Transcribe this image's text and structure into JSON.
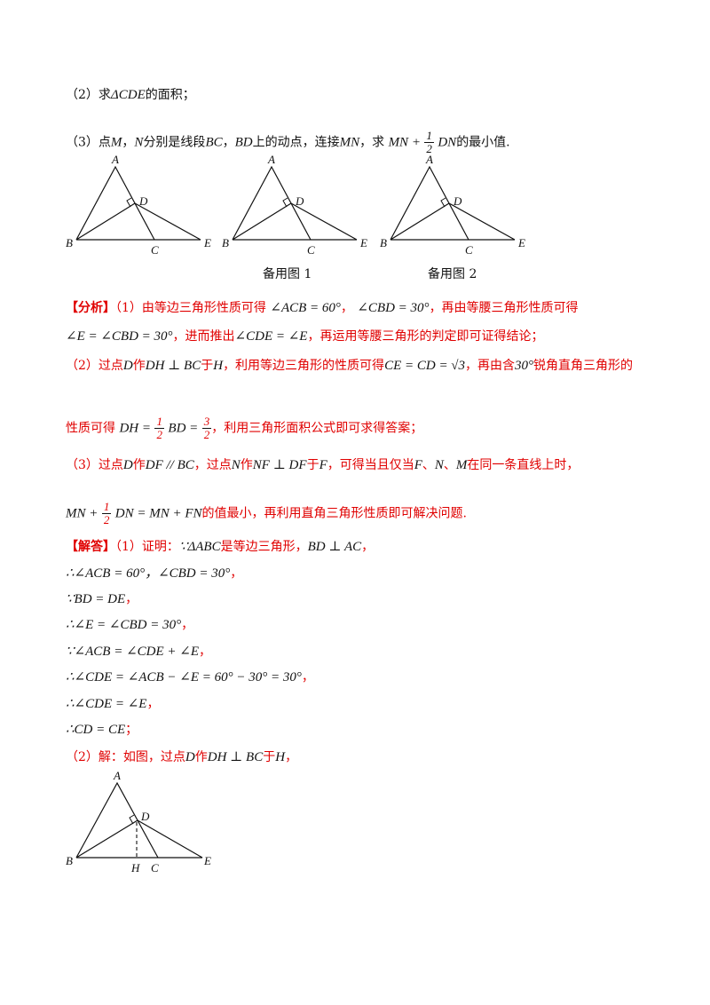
{
  "q2": {
    "label": "（2）求",
    "math": "ΔCDE",
    "tail": "的面积；"
  },
  "q3": {
    "label": "（3）点",
    "m": "M",
    "sep1": "，",
    "n": "N",
    "text1": "分别是线段",
    "bc": "BC",
    "sep2": "，",
    "bd": "BD",
    "text2": "上的动点，连接",
    "mn": "MN",
    "text3": "，求",
    "expr_pre": "MN +",
    "frac_num": "1",
    "frac_den": "2",
    "expr_post": "DN",
    "text4": "的最小值."
  },
  "figures": {
    "labels": {
      "A": "A",
      "B": "B",
      "C": "C",
      "D": "D",
      "E": "E",
      "H": "H"
    },
    "caption1": "备用图 1",
    "caption2": "备用图 2"
  },
  "analysis": {
    "tag": "【分析】",
    "l1_a": "（1）由等边三角形性质可得",
    "l1_m1": "∠ACB = 60°",
    "l1_b": "，",
    "l1_m2": "∠CBD = 30°",
    "l1_c": "，再由等腰三角形性质可得",
    "l2_m1": "∠E = ∠CBD = 30°",
    "l2_a": "，进而推出",
    "l2_m2": "∠CDE = ∠E",
    "l2_b": "，再运用等腰三角形的判定即可证得结论；",
    "l3_a": "（2）过点",
    "l3_d": "D",
    "l3_b": "作",
    "l3_m1": "DH ⊥ BC",
    "l3_c": "于",
    "l3_h": "H",
    "l3_d2": "，利用等边三角形的性质可得",
    "l3_m2": "CE = CD = √3",
    "l3_e": "，再由含",
    "l3_m3": "30°",
    "l3_f": "锐角直角三角形的",
    "l4_a": "性质可得",
    "l4_m1": "DH =",
    "l4_f1n": "1",
    "l4_f1d": "2",
    "l4_m2": "BD =",
    "l4_f2n": "3",
    "l4_f2d": "2",
    "l4_b": "，利用三角形面积公式即可求得答案；",
    "l5_a": "（3）过点",
    "l5_d": "D",
    "l5_b": "作",
    "l5_m1": "DF // BC",
    "l5_c": "，过点",
    "l5_n": "N",
    "l5_d2": "作",
    "l5_m2": "NF ⊥ DF",
    "l5_e": "于",
    "l5_f": "F",
    "l5_g": "，可得当且仅当",
    "l5_ff": "F",
    "l5_h": "、",
    "l5_nn": "N",
    "l5_i": "、",
    "l5_mm": "M",
    "l5_j": "在同一条直线上时，",
    "l6_m1": "MN +",
    "l6_fn": "1",
    "l6_fd": "2",
    "l6_m2": "DN = MN + FN",
    "l6_a": "的值最小，再利用直角三角形性质即可解决问题."
  },
  "solution": {
    "tag": "【解答】",
    "s1_a": "（1）证明：",
    "s1_m1": "∵ΔABC",
    "s1_b": "是等边三角形，",
    "s1_m2": "BD ⊥ AC",
    "s1_c": "，",
    "s2_m": "∴∠ACB = 60°，∠CBD = 30°",
    "s2_c": "，",
    "s3_m": "∵BD = DE",
    "s3_c": "，",
    "s4_m": "∴∠E = ∠CBD = 30°",
    "s4_c": "，",
    "s5_m": "∵∠ACB = ∠CDE + ∠E",
    "s5_c": "，",
    "s6_m": "∴∠CDE = ∠ACB − ∠E = 60° − 30° = 30°",
    "s6_c": "，",
    "s7_m": "∴∠CDE = ∠E",
    "s7_c": "，",
    "s8_m": "∴CD = CE",
    "s8_c": "；",
    "s9_a": "（2）解：如图，过点",
    "s9_d": "D",
    "s9_b": "作",
    "s9_m": "DH ⊥ BC",
    "s9_c": "于",
    "s9_h": "H",
    "s9_e": "，"
  }
}
